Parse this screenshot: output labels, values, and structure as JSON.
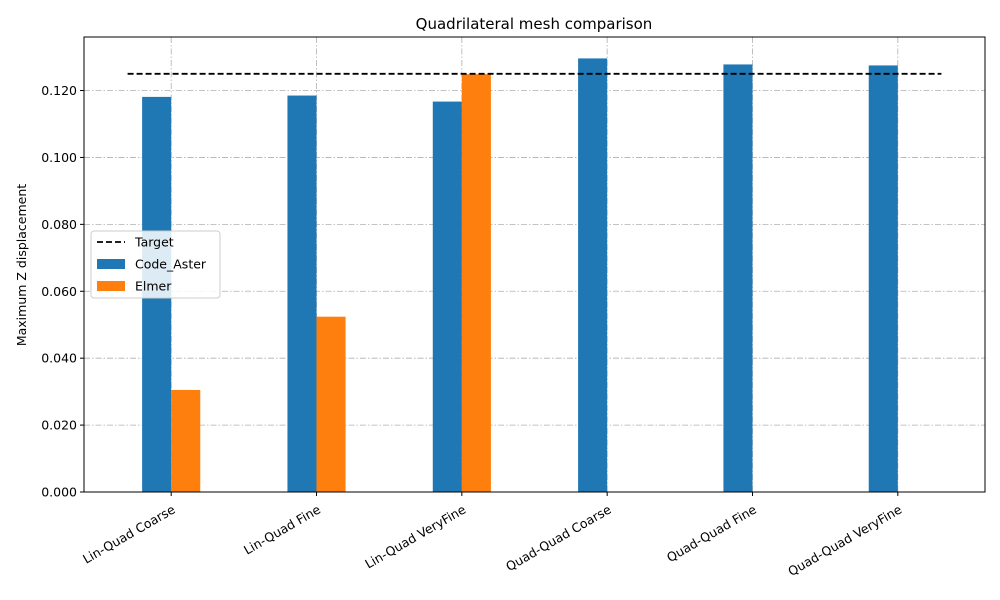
{
  "chart_data": {
    "type": "bar",
    "title": "Quadrilateral mesh comparison",
    "xlabel": "",
    "ylabel": "Maximum Z displacement",
    "categories": [
      "Lin-Quad Coarse",
      "Lin-Quad Fine",
      "Lin-Quad VeryFine",
      "Quad-Quad Coarse",
      "Quad-Quad Fine",
      "Quad-Quad VeryFine"
    ],
    "series": [
      {
        "name": "Code_Aster",
        "color": "#1f77b4",
        "values": [
          0.1181,
          0.1185,
          0.1167,
          0.1296,
          0.1278,
          0.1275
        ]
      },
      {
        "name": "Elmer",
        "color": "#ff7f0e",
        "values": [
          0.0305,
          0.0524,
          0.1249,
          null,
          null,
          null
        ]
      }
    ],
    "target": {
      "name": "Target",
      "value": 0.125,
      "color": "#000000",
      "style": "dashed"
    },
    "ylim": [
      0,
      0.136
    ],
    "yticks": [
      0.0,
      0.02,
      0.04,
      0.06,
      0.08,
      0.1,
      0.12
    ],
    "ytick_labels": [
      "0.000",
      "0.020",
      "0.040",
      "0.060",
      "0.080",
      "0.100",
      "0.120"
    ],
    "grid": true,
    "legend_position": "center-left"
  }
}
